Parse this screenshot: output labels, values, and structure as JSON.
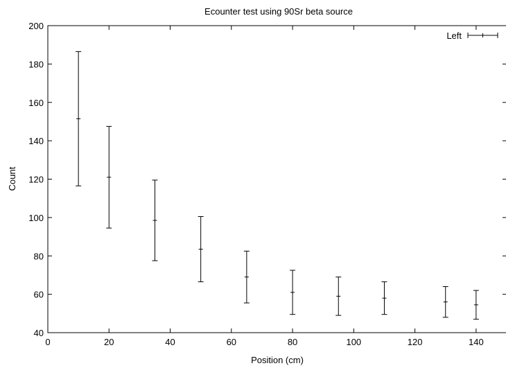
{
  "chart_data": {
    "type": "scatter",
    "title": "Ecounter test using 90Sr beta source",
    "xlabel": "Position (cm)",
    "ylabel": "Count",
    "xlim": [
      0,
      150
    ],
    "ylim": [
      40,
      200
    ],
    "xticks": [
      0,
      20,
      40,
      60,
      80,
      100,
      120,
      140
    ],
    "yticks": [
      40,
      60,
      80,
      100,
      120,
      140,
      160,
      180,
      200
    ],
    "grid": false,
    "legend_position": "top-right",
    "series": [
      {
        "name": "Left",
        "style": "points-with-errorbars",
        "color": "#000000",
        "points": [
          {
            "x": 10,
            "y": 151.5,
            "ylow": 116.5,
            "yhigh": 186.5
          },
          {
            "x": 20,
            "y": 121,
            "ylow": 94.5,
            "yhigh": 147.5
          },
          {
            "x": 35,
            "y": 98.5,
            "ylow": 77.5,
            "yhigh": 119.5
          },
          {
            "x": 50,
            "y": 83.5,
            "ylow": 66.5,
            "yhigh": 100.5
          },
          {
            "x": 65,
            "y": 69,
            "ylow": 55.5,
            "yhigh": 82.5
          },
          {
            "x": 80,
            "y": 61,
            "ylow": 49.5,
            "yhigh": 72.5
          },
          {
            "x": 95,
            "y": 59,
            "ylow": 49,
            "yhigh": 69
          },
          {
            "x": 110,
            "y": 58,
            "ylow": 49.5,
            "yhigh": 66.5
          },
          {
            "x": 130,
            "y": 56,
            "ylow": 48,
            "yhigh": 64
          },
          {
            "x": 140,
            "y": 54.5,
            "ylow": 47,
            "yhigh": 62
          }
        ]
      }
    ]
  }
}
